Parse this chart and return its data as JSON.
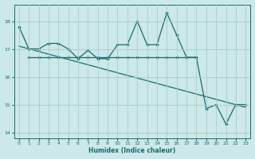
{
  "xlabel": "Humidex (Indice chaleur)",
  "background_color": "#cce8e8",
  "grid_color": "#aacccc",
  "line_color": "#1a6b6b",
  "xlim": [
    -0.5,
    23.5
  ],
  "ylim": [
    13.8,
    18.6
  ],
  "yticks": [
    14,
    15,
    16,
    17,
    18
  ],
  "xticks": [
    0,
    1,
    2,
    3,
    4,
    5,
    6,
    7,
    8,
    9,
    10,
    11,
    12,
    13,
    14,
    15,
    16,
    17,
    18,
    19,
    20,
    21,
    22,
    23
  ],
  "line1_x": [
    0,
    1,
    2,
    3,
    4,
    5,
    6,
    7,
    8,
    9,
    10,
    11,
    12,
    13,
    14,
    15,
    16,
    17,
    18,
    19,
    20,
    21,
    22,
    23
  ],
  "line1_y": [
    17.8,
    17.0,
    17.0,
    17.2,
    17.2,
    17.0,
    16.65,
    16.95,
    16.65,
    16.65,
    17.15,
    17.15,
    18.0,
    17.15,
    17.15,
    18.3,
    17.5,
    16.7,
    16.7,
    14.85,
    15.0,
    14.3,
    15.0,
    15.0
  ],
  "line2_x": [
    1,
    2,
    3,
    4,
    5,
    6,
    7,
    8,
    9,
    10,
    11,
    12,
    13,
    14,
    15,
    16,
    17,
    18
  ],
  "line2_y": [
    16.7,
    16.7,
    16.7,
    16.7,
    16.7,
    16.7,
    16.7,
    16.7,
    16.7,
    16.7,
    16.7,
    16.7,
    16.7,
    16.7,
    16.7,
    16.7,
    16.7,
    16.7
  ],
  "trend_x": [
    0,
    23
  ],
  "trend_y": [
    17.1,
    14.9
  ]
}
